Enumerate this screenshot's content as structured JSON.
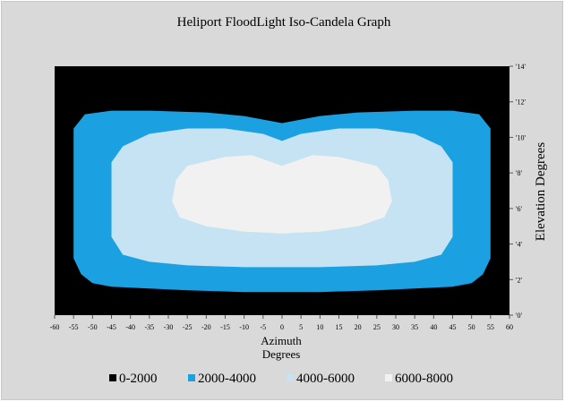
{
  "chart_data": {
    "type": "contour",
    "title": "Heliport FloodLight Iso-Candela Graph",
    "xlabel": "Azimuth",
    "xlabel2": "Degrees",
    "ylabel": "Elevation Degrees",
    "xlim": [
      -60,
      60
    ],
    "ylim": [
      0,
      14
    ],
    "x_ticks": [
      -60,
      -55,
      -50,
      -45,
      -40,
      -35,
      -30,
      -25,
      -20,
      -15,
      -10,
      -5,
      0,
      5,
      10,
      15,
      20,
      25,
      30,
      35,
      40,
      45,
      50,
      55,
      60
    ],
    "x_tick_labels": [
      "-60",
      "-55",
      "-50",
      "-45",
      "-40",
      "-35",
      "-30",
      "-25",
      "-20",
      "-15",
      "-10",
      "-5",
      "0",
      "5",
      "10",
      "15",
      "20",
      "25",
      "30",
      "35",
      "40",
      "45",
      "50",
      "55",
      "60"
    ],
    "y_ticks": [
      0,
      2,
      4,
      6,
      8,
      10,
      12,
      14
    ],
    "y_tick_labels": [
      "'0'",
      "'2'",
      "'4'",
      "'6'",
      "'8'",
      "'10'",
      "'12'",
      "'14'"
    ],
    "legend_position": "bottom",
    "levels": [
      {
        "name": "0-2000",
        "color": "#000000",
        "contour": [
          [
            -60,
            0
          ],
          [
            60,
            0
          ],
          [
            60,
            14
          ],
          [
            -60,
            14
          ]
        ]
      },
      {
        "name": "2000-4000",
        "color": "#1ba1e2",
        "contour": [
          [
            -55,
            10.5
          ],
          [
            -52,
            11.3
          ],
          [
            -45,
            11.5
          ],
          [
            -35,
            11.5
          ],
          [
            -20,
            11.4
          ],
          [
            -10,
            11.2
          ],
          [
            0,
            10.8
          ],
          [
            10,
            11.2
          ],
          [
            20,
            11.4
          ],
          [
            35,
            11.5
          ],
          [
            45,
            11.5
          ],
          [
            52,
            11.3
          ],
          [
            55,
            10.5
          ],
          [
            55,
            3.2
          ],
          [
            53,
            2.3
          ],
          [
            50,
            1.8
          ],
          [
            45,
            1.6
          ],
          [
            35,
            1.5
          ],
          [
            25,
            1.4
          ],
          [
            10,
            1.3
          ],
          [
            0,
            1.3
          ],
          [
            -10,
            1.3
          ],
          [
            -25,
            1.4
          ],
          [
            -35,
            1.5
          ],
          [
            -45,
            1.6
          ],
          [
            -50,
            1.8
          ],
          [
            -53,
            2.3
          ],
          [
            -55,
            3.2
          ]
        ]
      },
      {
        "name": "4000-6000",
        "color": "#c5e3f3",
        "contour": [
          [
            -45,
            8.6
          ],
          [
            -42,
            9.5
          ],
          [
            -35,
            10.2
          ],
          [
            -25,
            10.5
          ],
          [
            -15,
            10.5
          ],
          [
            -5,
            10.2
          ],
          [
            0,
            9.8
          ],
          [
            5,
            10.2
          ],
          [
            15,
            10.5
          ],
          [
            25,
            10.5
          ],
          [
            35,
            10.2
          ],
          [
            42,
            9.5
          ],
          [
            45,
            8.6
          ],
          [
            45,
            4.4
          ],
          [
            42,
            3.4
          ],
          [
            35,
            3.0
          ],
          [
            25,
            2.8
          ],
          [
            10,
            2.7
          ],
          [
            0,
            2.7
          ],
          [
            -10,
            2.7
          ],
          [
            -25,
            2.8
          ],
          [
            -35,
            3.0
          ],
          [
            -42,
            3.4
          ],
          [
            -45,
            4.4
          ]
        ]
      },
      {
        "name": "6000-8000",
        "color": "#f1f1f1",
        "contour": [
          [
            -29,
            6.4
          ],
          [
            -28,
            7.6
          ],
          [
            -25,
            8.4
          ],
          [
            -15,
            8.9
          ],
          [
            -8,
            9.0
          ],
          [
            0,
            8.4
          ],
          [
            8,
            9.0
          ],
          [
            15,
            8.9
          ],
          [
            25,
            8.4
          ],
          [
            28,
            7.6
          ],
          [
            29,
            6.4
          ],
          [
            27,
            5.5
          ],
          [
            20,
            5.0
          ],
          [
            10,
            4.7
          ],
          [
            0,
            4.6
          ],
          [
            -10,
            4.7
          ],
          [
            -20,
            5.0
          ],
          [
            -27,
            5.5
          ]
        ]
      }
    ]
  }
}
